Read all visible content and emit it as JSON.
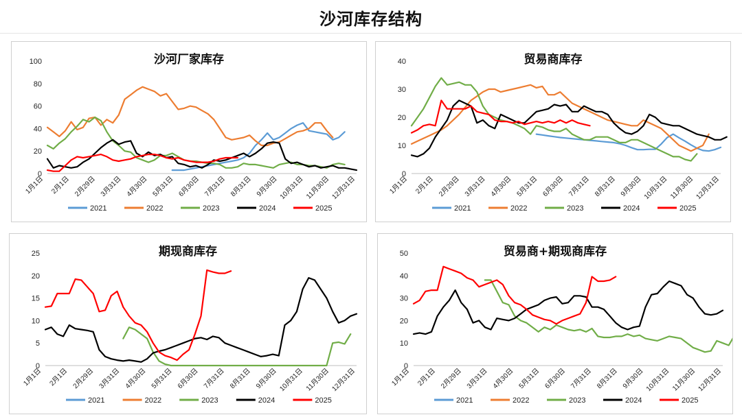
{
  "page": {
    "title": "沙河库存结构"
  },
  "chart_data": [
    {
      "id": "c1",
      "type": "line",
      "title": "沙河厂家库存",
      "ylim": [
        0,
        100
      ],
      "yticks": [
        0,
        20,
        40,
        60,
        80,
        100
      ],
      "xmax": 52,
      "xticks": [
        "1月1日",
        "2月1日",
        "2月29日",
        "3月31日",
        "4月30日",
        "5月31日",
        "6月30日",
        "7月31日",
        "8月31日",
        "9月30日",
        "10月31日",
        "11月30日",
        "12月31日"
      ],
      "series": [
        {
          "name": "2021",
          "color": "#5b9bd5",
          "x0": 21,
          "values": [
            3,
            3,
            3,
            4,
            5,
            6,
            7,
            8,
            9,
            10,
            11,
            12,
            14,
            18,
            25,
            30,
            36,
            30,
            32,
            36,
            40,
            43,
            45,
            38,
            37,
            36,
            35,
            30,
            32,
            37
          ]
        },
        {
          "name": "2022",
          "color": "#ed7d31",
          "x0": 0,
          "values": [
            41,
            37,
            33,
            38,
            46,
            39,
            41,
            49,
            50,
            43,
            48,
            45,
            52,
            66,
            70,
            74,
            77,
            75,
            73,
            69,
            71,
            64,
            57,
            58,
            60,
            59,
            56,
            53,
            48,
            40,
            32,
            30,
            31,
            32,
            34,
            29,
            25,
            25,
            27,
            28,
            31,
            34,
            37,
            38,
            40,
            45,
            45,
            38,
            32
          ]
        },
        {
          "name": "2023",
          "color": "#70ad47",
          "x0": 0,
          "values": [
            25,
            22,
            27,
            31,
            37,
            42,
            48,
            46,
            50,
            47,
            37,
            29,
            25,
            20,
            19,
            14,
            12,
            10,
            12,
            16,
            16,
            18,
            15,
            12,
            11,
            11,
            10,
            9,
            9,
            8,
            5,
            5,
            6,
            9,
            8,
            8,
            7,
            6,
            5,
            8,
            9,
            10,
            8,
            8,
            7,
            7,
            6,
            5,
            8,
            9,
            8
          ]
        },
        {
          "name": "2024",
          "color": "#000000",
          "x0": 0,
          "values": [
            13,
            5,
            7,
            6,
            5,
            6,
            10,
            13,
            18,
            23,
            27,
            30,
            26,
            28,
            29,
            18,
            15,
            19,
            16,
            17,
            14,
            15,
            9,
            8,
            6,
            7,
            5,
            8,
            12,
            11,
            12,
            14,
            16,
            18,
            15,
            18,
            22,
            27,
            28,
            27,
            13,
            9,
            10,
            8,
            6,
            7,
            5,
            6,
            7,
            5,
            5,
            4,
            3
          ]
        },
        {
          "name": "2025",
          "color": "#ff0000",
          "x0": 0,
          "values": [
            3,
            2,
            2,
            7,
            12,
            15,
            14,
            15,
            16,
            17,
            15,
            12,
            11,
            12,
            13,
            15,
            16,
            17,
            17,
            16,
            14,
            13,
            14,
            12,
            11,
            10,
            10,
            10,
            11,
            13,
            14,
            14,
            14
          ]
        }
      ]
    },
    {
      "id": "c2",
      "type": "line",
      "title": "贸易商库存",
      "ylim": [
        0,
        40
      ],
      "yticks": [
        0,
        10,
        20,
        30,
        40
      ],
      "xmax": 52,
      "xticks": [
        "1月1日",
        "2月1日",
        "2月29日",
        "3月31日",
        "4月30日",
        "5月31日",
        "6月30日",
        "7月31日",
        "8月31日",
        "9月30日",
        "10月31日",
        "11月30日",
        "12月31日"
      ],
      "series": [
        {
          "name": "2021",
          "color": "#5b9bd5",
          "x0": 21,
          "values": [
            14,
            13.7,
            13.4,
            13.1,
            12.8,
            12.6,
            12.4,
            12.2,
            12,
            11.8,
            11.6,
            11.4,
            11.2,
            11,
            10.6,
            10,
            9.2,
            8.5,
            8.5,
            8.6,
            8.6,
            10.5,
            12.8,
            14,
            12.7,
            11.5,
            10.2,
            9,
            8.2,
            8,
            8.5,
            9.3
          ]
        },
        {
          "name": "2022",
          "color": "#ed7d31",
          "x0": 0,
          "values": [
            10.5,
            11.5,
            12.5,
            13.5,
            14.5,
            15.5,
            17,
            19,
            21,
            23.5,
            26,
            27.5,
            29,
            30,
            30,
            29,
            29.5,
            30,
            30.5,
            31,
            31.5,
            30.5,
            31,
            28,
            28,
            29,
            27,
            25,
            24,
            23,
            22,
            21,
            20,
            19,
            18.5,
            18,
            17.5,
            17,
            17,
            19,
            18,
            17,
            16,
            14,
            12,
            10,
            9,
            8,
            9,
            10,
            14
          ]
        },
        {
          "name": "2023",
          "color": "#70ad47",
          "x0": 0,
          "values": [
            17,
            20,
            23,
            27,
            31,
            34,
            31.5,
            32,
            32.5,
            31.5,
            31.5,
            29,
            24,
            21,
            20,
            19,
            18.5,
            18,
            17,
            16,
            14,
            17,
            16.5,
            15.5,
            15,
            15,
            16,
            14,
            13,
            12,
            12,
            13,
            13,
            13,
            12,
            11,
            11,
            12,
            12,
            11,
            10,
            9,
            8,
            7,
            6,
            6,
            5,
            4.5,
            7
          ]
        },
        {
          "name": "2024",
          "color": "#000000",
          "x0": 0,
          "values": [
            6.5,
            6,
            7,
            9,
            13,
            16,
            19,
            24,
            26,
            25,
            24,
            18,
            19,
            17,
            16,
            21,
            20,
            19,
            18,
            18,
            20,
            22,
            22.5,
            23,
            24.5,
            24,
            24.5,
            22,
            22,
            24,
            23,
            22,
            22,
            21,
            18,
            16,
            14.5,
            14,
            15,
            17,
            21,
            20,
            18,
            17.5,
            17,
            17,
            16,
            15,
            14,
            13.5,
            13,
            12,
            12,
            13
          ]
        },
        {
          "name": "2025",
          "color": "#ff0000",
          "x0": 0,
          "values": [
            14.5,
            15.5,
            17,
            17.5,
            17,
            26,
            23,
            23,
            23,
            23,
            24,
            22,
            21.5,
            21,
            19,
            18.5,
            18.5,
            18,
            18.5,
            17.5,
            18,
            18.5,
            18,
            18.5,
            18,
            19,
            18,
            19,
            18,
            17.5,
            17
          ]
        }
      ]
    },
    {
      "id": "c3",
      "type": "line",
      "title": "期现商库存",
      "ylim": [
        0,
        25
      ],
      "yticks": [
        0,
        5,
        10,
        15,
        20,
        25
      ],
      "xmax": 52,
      "xticks": [
        "1月1日",
        "2月1日",
        "2月29日",
        "3月31日",
        "4月30日",
        "5月31日",
        "6月30日",
        "7月31日",
        "8月31日",
        "9月30日",
        "10月31日",
        "11月30日",
        "12月31日"
      ],
      "series": [
        {
          "name": "2021",
          "color": "#5b9bd5",
          "x0": 0,
          "values": []
        },
        {
          "name": "2022",
          "color": "#ed7d31",
          "x0": 0,
          "values": []
        },
        {
          "name": "2023",
          "color": "#70ad47",
          "x0": 13,
          "values": [
            6,
            8.5,
            8,
            7,
            6,
            3,
            1,
            0.3,
            0,
            0,
            0,
            0,
            0,
            0,
            0,
            0,
            0,
            0,
            0,
            0,
            0,
            0,
            0,
            0,
            0,
            0,
            0,
            0,
            0,
            0,
            0,
            0,
            0,
            0,
            0,
            5,
            5.2,
            4.8,
            7
          ]
        },
        {
          "name": "2024",
          "color": "#000000",
          "x0": 0,
          "values": [
            8,
            8.5,
            7,
            6.5,
            9,
            8.2,
            8,
            7.8,
            7.5,
            3.5,
            2,
            1.5,
            1.2,
            1,
            1.2,
            1,
            0.8,
            1.5,
            2.8,
            3.2,
            3.5,
            4,
            4.5,
            5,
            5.5,
            6,
            6.2,
            5.8,
            6.5,
            6.2,
            5,
            4.5,
            4,
            3.5,
            3,
            2.5,
            2,
            2.2,
            2.5,
            2.2,
            9,
            10,
            12,
            17,
            19.5,
            19,
            17,
            15,
            12,
            9.5,
            10,
            11,
            11.5
          ]
        },
        {
          "name": "2025",
          "color": "#ff0000",
          "x0": 0,
          "values": [
            13,
            13.2,
            16,
            16,
            16,
            19.2,
            19,
            17.5,
            16,
            12,
            12.3,
            15.5,
            16.5,
            13,
            11,
            9.5,
            9,
            7.5,
            5,
            3,
            2.2,
            1.8,
            1.2,
            2.5,
            3.5,
            7,
            11,
            21.2,
            20.8,
            20.5,
            20.5,
            21
          ]
        }
      ]
    },
    {
      "id": "c4",
      "type": "line",
      "title": "贸易商+期现商库存",
      "ylim": [
        0,
        50
      ],
      "yticks": [
        0,
        10,
        20,
        30,
        40,
        50
      ],
      "xmax": 52,
      "xticks": [
        "1月1日",
        "2月1日",
        "2月29日",
        "3月31日",
        "4月30日",
        "5月31日",
        "6月30日",
        "7月31日",
        "8月31日",
        "9月30日",
        "10月31日",
        "11月30日",
        "12月31日"
      ],
      "series": [
        {
          "name": "2021",
          "color": "#5b9bd5",
          "x0": 0,
          "values": []
        },
        {
          "name": "2022",
          "color": "#ed7d31",
          "x0": 0,
          "values": []
        },
        {
          "name": "2023",
          "color": "#70ad47",
          "x0": 12,
          "values": [
            38,
            38,
            33,
            28,
            27,
            22,
            20,
            19,
            17,
            15,
            17,
            16,
            18,
            17,
            16,
            15.5,
            16,
            15,
            16.5,
            13,
            12.5,
            12.5,
            13,
            13,
            14,
            13,
            13.5,
            12,
            11.5,
            11,
            12,
            13,
            12.5,
            12,
            10,
            8,
            7,
            6,
            6.5,
            11,
            10,
            9,
            13.5
          ]
        },
        {
          "name": "2024",
          "color": "#000000",
          "x0": 0,
          "values": [
            14,
            14.5,
            14,
            15,
            22,
            26,
            29,
            33.5,
            28,
            25,
            19,
            20,
            17,
            16,
            21,
            20.5,
            20,
            21,
            23,
            25,
            26,
            27,
            29,
            30,
            30.5,
            27.5,
            28,
            31,
            31,
            30.5,
            26,
            26,
            25,
            22,
            19,
            17,
            16,
            17,
            17.5,
            26,
            31.5,
            32,
            35,
            37.5,
            36.5,
            35.5,
            31.5,
            30,
            26,
            23,
            22.5,
            23,
            24.5
          ]
        },
        {
          "name": "2025",
          "color": "#ff0000",
          "x0": 0,
          "values": [
            27.5,
            29,
            33,
            33.5,
            33.5,
            44,
            43,
            42,
            41,
            39,
            38,
            35,
            36,
            37,
            38,
            36,
            31,
            28,
            27,
            25,
            22.5,
            21.5,
            20.5,
            20,
            18.5,
            20,
            21,
            22,
            23,
            28,
            39.5,
            37.5,
            37.5,
            38,
            39.5
          ]
        }
      ]
    }
  ]
}
